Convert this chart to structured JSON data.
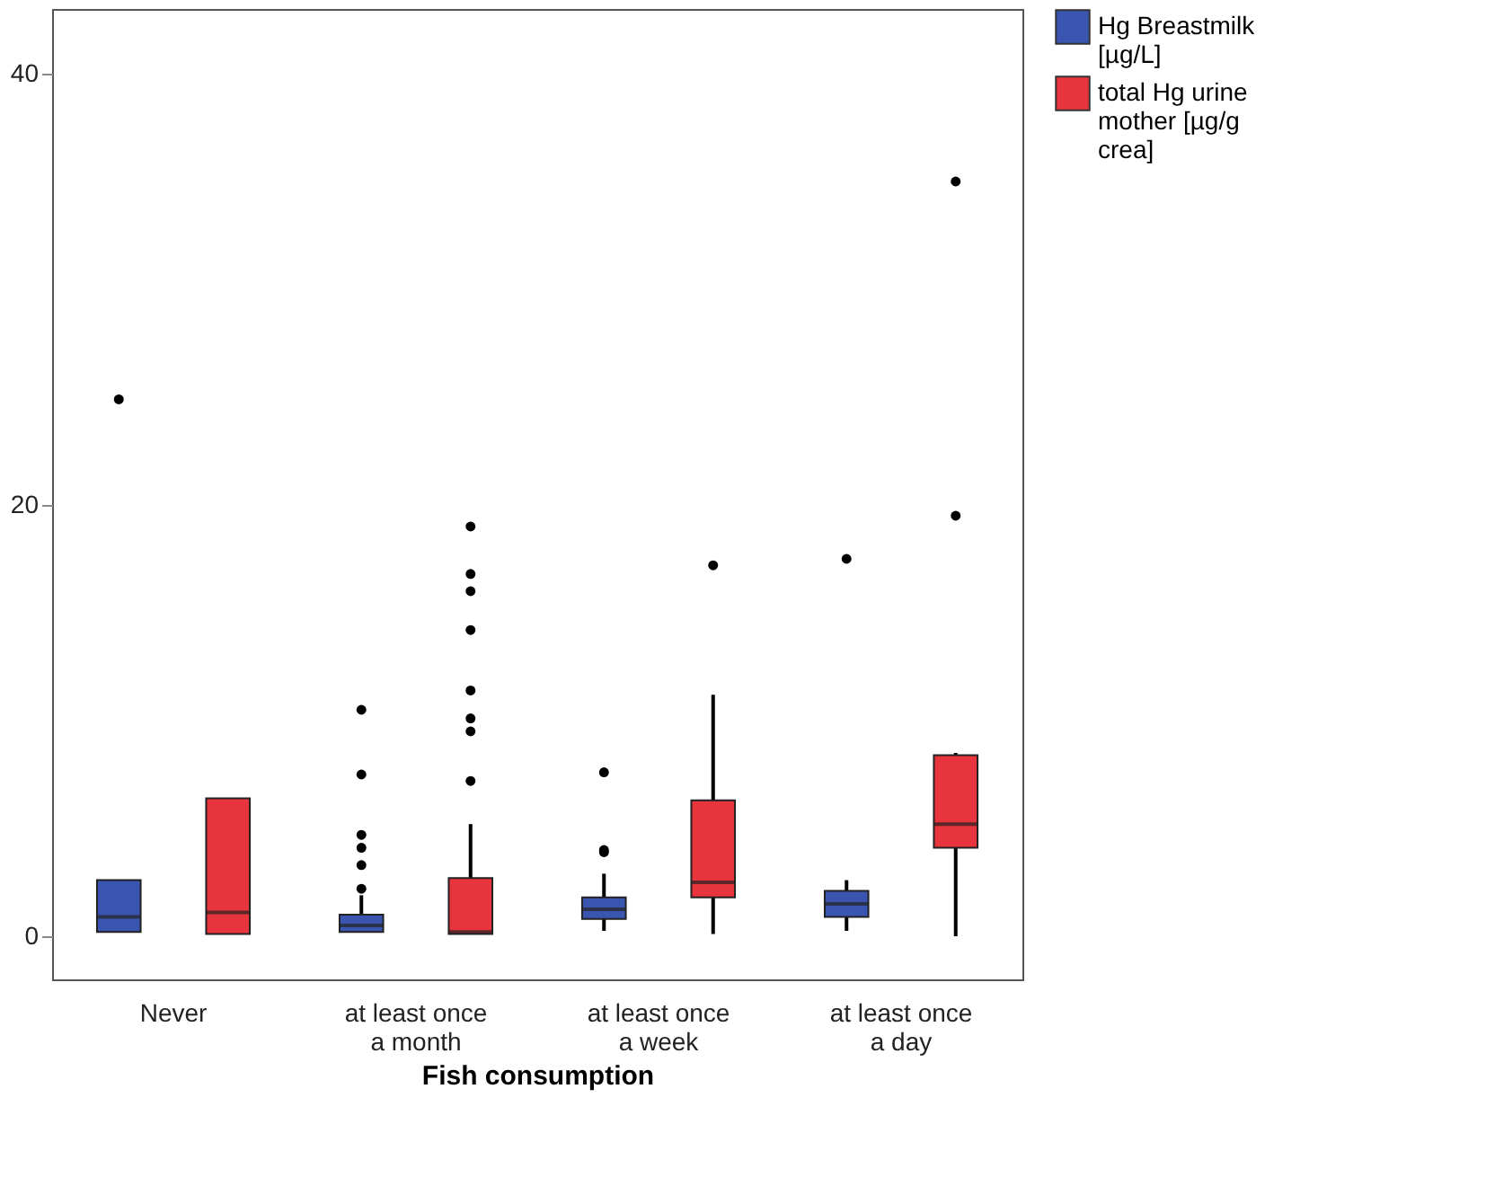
{
  "chart_data": {
    "type": "box",
    "xlabel": "Fish consumption",
    "categories": [
      "Never",
      "at least once a month",
      "at least once a week",
      "at least once a day"
    ],
    "ylim": [
      -2,
      43
    ],
    "yticks": [
      0,
      20,
      40
    ],
    "grid": false,
    "legend": "top right",
    "series": [
      {
        "name": "Hg Breastmilk [µg/L]",
        "color": "#3a55b0",
        "boxes": [
          {
            "low": 0.2,
            "q1": 0.2,
            "median": 0.9,
            "q3": 2.6,
            "high": 2.6,
            "outliers": [
              24.9
            ]
          },
          {
            "low": 0.2,
            "q1": 0.2,
            "median": 0.5,
            "q3": 1.0,
            "high": 1.9,
            "outliers": [
              2.2,
              3.3,
              4.1,
              4.7,
              7.5,
              10.5
            ]
          },
          {
            "low": 0.25,
            "q1": 0.8,
            "median": 1.25,
            "q3": 1.8,
            "high": 2.9,
            "outliers": [
              3.9,
              4.0,
              7.6
            ]
          },
          {
            "low": 0.25,
            "q1": 0.9,
            "median": 1.5,
            "q3": 2.1,
            "high": 2.6,
            "outliers": [
              17.5
            ]
          }
        ]
      },
      {
        "name": "total Hg urine mother [µg/g crea]",
        "color": "#e8343c",
        "boxes": [
          {
            "low": 0.1,
            "q1": 0.1,
            "median": 1.1,
            "q3": 6.4,
            "high": 6.4
          },
          {
            "low": 0.1,
            "q1": 0.1,
            "median": 0.2,
            "q3": 2.7,
            "high": 5.2,
            "outliers": [
              7.2,
              9.5,
              10.1,
              11.4,
              14.2,
              16.0,
              16.8,
              19.0
            ]
          },
          {
            "low": 0.1,
            "q1": 1.8,
            "median": 2.5,
            "q3": 6.3,
            "high": 11.2,
            "outliers": [
              17.2
            ]
          },
          {
            "low": 0.0,
            "q1": 4.1,
            "median": 5.2,
            "q3": 8.4,
            "high": 8.5,
            "outliers": [
              19.5,
              35.0
            ]
          }
        ]
      }
    ]
  }
}
